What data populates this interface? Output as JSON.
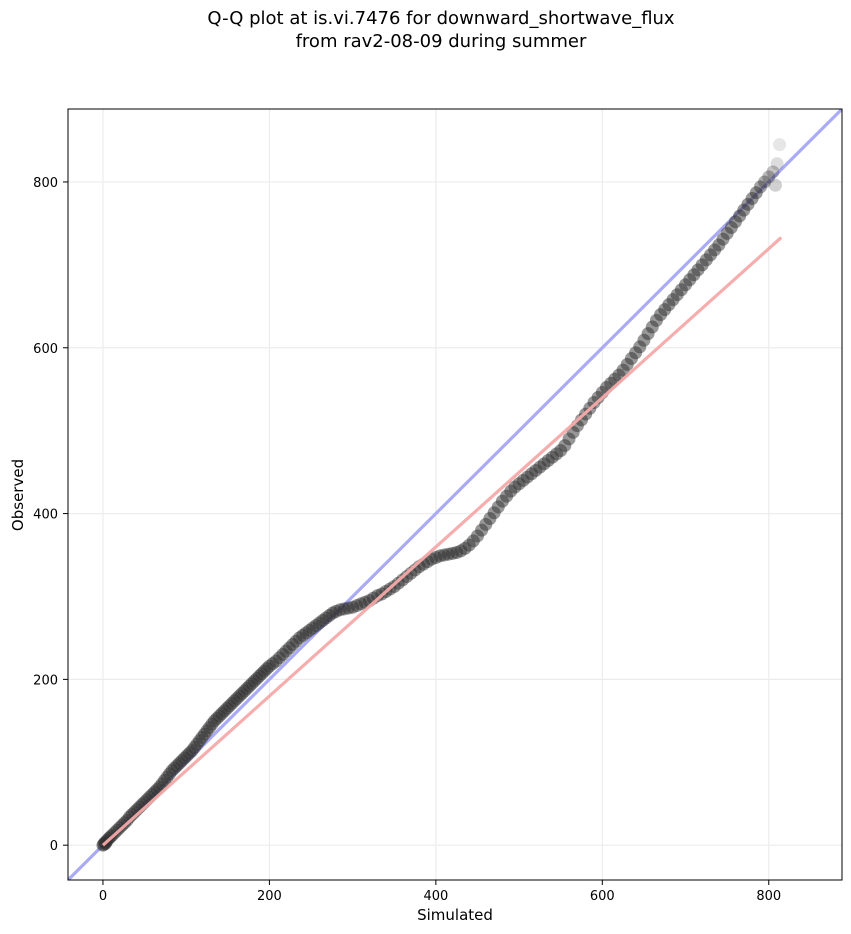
{
  "chart_data": {
    "type": "scatter",
    "title_lines": [
      "Q-Q plot at is.vi.7476 for downward_shortwave_flux",
      "from rav2-08-09 during summer"
    ],
    "xlabel": "Simulated",
    "ylabel": "Observed",
    "xlim": [
      -42,
      888
    ],
    "ylim": [
      -42,
      888
    ],
    "xticks": [
      0,
      200,
      400,
      600,
      800
    ],
    "yticks": [
      0,
      200,
      400,
      600,
      800
    ],
    "grid": true,
    "quantile_points": [
      [
        0,
        0
      ],
      [
        1,
        1
      ],
      [
        2,
        3
      ],
      [
        3,
        2
      ],
      [
        4,
        4
      ],
      [
        5,
        6
      ],
      [
        7,
        8
      ],
      [
        9,
        10
      ],
      [
        11,
        12
      ],
      [
        14,
        15
      ],
      [
        17,
        18
      ],
      [
        20,
        21
      ],
      [
        23,
        24
      ],
      [
        26,
        27
      ],
      [
        29,
        30
      ],
      [
        32,
        34
      ],
      [
        35,
        37
      ],
      [
        38,
        40
      ],
      [
        41,
        43
      ],
      [
        44,
        46
      ],
      [
        47,
        49
      ],
      [
        50,
        52
      ],
      [
        53,
        55
      ],
      [
        56,
        58
      ],
      [
        59,
        61
      ],
      [
        62,
        64
      ],
      [
        65,
        67
      ],
      [
        68,
        70
      ],
      [
        71,
        74
      ],
      [
        74,
        78
      ],
      [
        77,
        82
      ],
      [
        80,
        86
      ],
      [
        83,
        90
      ],
      [
        86,
        93
      ],
      [
        89,
        96
      ],
      [
        92,
        99
      ],
      [
        95,
        102
      ],
      [
        98,
        105
      ],
      [
        101,
        108
      ],
      [
        104,
        111
      ],
      [
        107,
        114
      ],
      [
        110,
        118
      ],
      [
        113,
        122
      ],
      [
        116,
        126
      ],
      [
        119,
        130
      ],
      [
        122,
        134
      ],
      [
        125,
        138
      ],
      [
        128,
        142
      ],
      [
        131,
        146
      ],
      [
        134,
        150
      ],
      [
        137,
        153
      ],
      [
        140,
        156
      ],
      [
        143,
        159
      ],
      [
        146,
        162
      ],
      [
        149,
        165
      ],
      [
        152,
        168
      ],
      [
        155,
        171
      ],
      [
        158,
        174
      ],
      [
        161,
        177
      ],
      [
        164,
        180
      ],
      [
        167,
        183
      ],
      [
        170,
        186
      ],
      [
        173,
        189
      ],
      [
        176,
        192
      ],
      [
        179,
        195
      ],
      [
        182,
        198
      ],
      [
        185,
        201
      ],
      [
        188,
        204
      ],
      [
        191,
        207
      ],
      [
        194,
        210
      ],
      [
        197,
        213
      ],
      [
        200,
        216
      ],
      [
        204,
        219
      ],
      [
        208,
        222
      ],
      [
        212,
        226
      ],
      [
        216,
        230
      ],
      [
        220,
        234
      ],
      [
        224,
        238
      ],
      [
        228,
        242
      ],
      [
        232,
        246
      ],
      [
        236,
        250
      ],
      [
        240,
        253
      ],
      [
        244,
        256
      ],
      [
        248,
        259
      ],
      [
        252,
        262
      ],
      [
        256,
        265
      ],
      [
        260,
        268
      ],
      [
        264,
        271
      ],
      [
        268,
        274
      ],
      [
        272,
        277
      ],
      [
        276,
        280
      ],
      [
        280,
        282
      ],
      [
        285,
        284
      ],
      [
        290,
        285
      ],
      [
        295,
        286
      ],
      [
        300,
        287
      ],
      [
        305,
        289
      ],
      [
        310,
        291
      ],
      [
        315,
        293
      ],
      [
        320,
        295
      ],
      [
        325,
        298
      ],
      [
        330,
        301
      ],
      [
        335,
        303
      ],
      [
        340,
        306
      ],
      [
        345,
        309
      ],
      [
        350,
        312
      ],
      [
        355,
        316
      ],
      [
        360,
        320
      ],
      [
        365,
        324
      ],
      [
        370,
        328
      ],
      [
        375,
        332
      ],
      [
        380,
        336
      ],
      [
        385,
        339
      ],
      [
        390,
        342
      ],
      [
        395,
        345
      ],
      [
        400,
        347
      ],
      [
        405,
        349
      ],
      [
        410,
        350
      ],
      [
        415,
        351
      ],
      [
        420,
        352
      ],
      [
        425,
        353
      ],
      [
        430,
        355
      ],
      [
        435,
        358
      ],
      [
        440,
        362
      ],
      [
        445,
        367
      ],
      [
        450,
        373
      ],
      [
        455,
        380
      ],
      [
        460,
        387
      ],
      [
        465,
        394
      ],
      [
        470,
        401
      ],
      [
        475,
        408
      ],
      [
        480,
        415
      ],
      [
        485,
        421
      ],
      [
        490,
        427
      ],
      [
        495,
        432
      ],
      [
        500,
        436
      ],
      [
        505,
        440
      ],
      [
        510,
        444
      ],
      [
        515,
        448
      ],
      [
        520,
        452
      ],
      [
        525,
        456
      ],
      [
        530,
        460
      ],
      [
        535,
        464
      ],
      [
        540,
        468
      ],
      [
        545,
        472
      ],
      [
        550,
        476
      ],
      [
        555,
        482
      ],
      [
        560,
        490
      ],
      [
        565,
        498
      ],
      [
        570,
        506
      ],
      [
        575,
        513
      ],
      [
        580,
        520
      ],
      [
        585,
        527
      ],
      [
        590,
        534
      ],
      [
        595,
        540
      ],
      [
        600,
        546
      ],
      [
        605,
        552
      ],
      [
        610,
        557
      ],
      [
        615,
        562
      ],
      [
        620,
        567
      ],
      [
        625,
        573
      ],
      [
        630,
        580
      ],
      [
        635,
        587
      ],
      [
        640,
        594
      ],
      [
        645,
        601
      ],
      [
        650,
        609
      ],
      [
        655,
        617
      ],
      [
        660,
        625
      ],
      [
        665,
        633
      ],
      [
        670,
        640
      ],
      [
        675,
        646
      ],
      [
        680,
        652
      ],
      [
        685,
        658
      ],
      [
        690,
        664
      ],
      [
        695,
        670
      ],
      [
        700,
        676
      ],
      [
        705,
        682
      ],
      [
        710,
        688
      ],
      [
        715,
        694
      ],
      [
        720,
        700
      ],
      [
        725,
        706
      ],
      [
        730,
        712
      ],
      [
        735,
        718
      ],
      [
        740,
        724
      ],
      [
        745,
        731
      ],
      [
        750,
        738
      ],
      [
        755,
        745
      ],
      [
        760,
        752
      ],
      [
        765,
        759
      ],
      [
        770,
        766
      ],
      [
        775,
        773
      ],
      [
        780,
        780
      ],
      [
        785,
        787
      ],
      [
        790,
        794
      ],
      [
        795,
        800
      ],
      [
        800,
        806
      ],
      [
        805,
        812
      ],
      [
        808,
        796
      ],
      [
        810,
        822
      ],
      [
        813,
        845
      ]
    ],
    "reference_line": {
      "name": "1:1",
      "color": "#aaaaf5",
      "from": [
        -42,
        -42
      ],
      "to": [
        888,
        888
      ]
    },
    "fit_line": {
      "color": "#f5a9a9",
      "from": [
        0,
        0
      ],
      "to": [
        815,
        733
      ]
    },
    "point_color": "#2f2f2f"
  }
}
